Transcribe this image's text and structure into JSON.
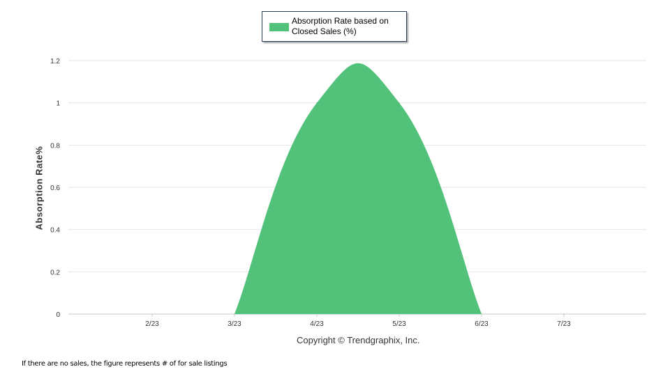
{
  "chart_data": {
    "type": "area",
    "ylabel": "Absorption Rate%",
    "xlabel": "Copyright © Trendgraphix, Inc.",
    "footnote": "If there are no sales, the figure represents # of for sale listings",
    "ylim": [
      0,
      1.2
    ],
    "yticks": [
      "0",
      "0.2",
      "0.4",
      "0.6",
      "0.8",
      "1",
      "1.2"
    ],
    "categories": [
      "2/23",
      "3/23",
      "4/23",
      "5/23",
      "6/23",
      "7/23"
    ],
    "grid": true,
    "legend_position": "top-center",
    "series": [
      {
        "name": "Absorption Rate based on Closed Sales (%)",
        "color": "#52c17a",
        "values": [
          0,
          0,
          1,
          1,
          0,
          0
        ]
      }
    ]
  }
}
